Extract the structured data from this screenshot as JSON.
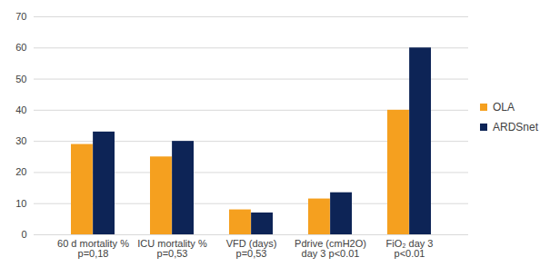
{
  "chart_data": {
    "type": "bar",
    "categories": [
      "60 d mortality %\np=0,18",
      "ICU mortality %\np=0,53",
      "VFD (days)\np=0,53",
      "Pdrive (cmH2O)\nday 3 p<0.01",
      "FiO₂ day 3\np<0.01"
    ],
    "series": [
      {
        "name": "OLA",
        "color": "#F5A01F",
        "values": [
          29,
          25,
          8,
          11.5,
          40
        ]
      },
      {
        "name": "ARDSnet",
        "color": "#0D2456",
        "values": [
          33,
          30,
          7,
          13.5,
          60
        ]
      }
    ],
    "ylim": [
      0,
      70
    ],
    "yticks": [
      0,
      10,
      20,
      30,
      40,
      50,
      60,
      70
    ],
    "grid": true,
    "legend": "right"
  }
}
